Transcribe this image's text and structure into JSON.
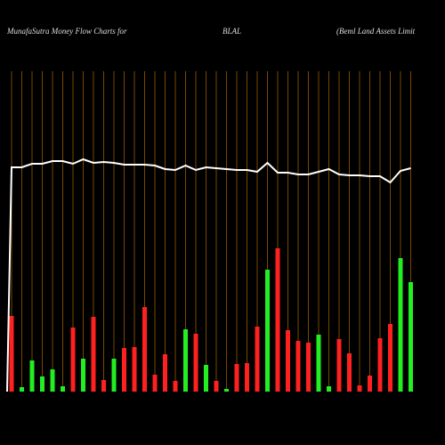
{
  "chart_data": {
    "type": "bar",
    "title": "MunafaSutra  Money Flow  Charts for",
    "symbol": "BLAL",
    "subtitle": "(Beml Land Assets Limit",
    "categories": [
      null,
      null,
      null,
      null,
      null,
      null,
      null,
      null,
      null,
      null,
      null,
      null,
      null,
      null,
      null,
      null,
      null,
      null,
      null,
      null,
      null,
      null,
      null,
      null,
      null,
      null,
      null,
      null,
      null,
      null,
      null,
      null,
      null,
      null,
      null,
      null,
      null,
      null,
      null,
      null
    ],
    "values": [
      85,
      5,
      35,
      17,
      25,
      6,
      72,
      37,
      84,
      13,
      37,
      49,
      50,
      95,
      19,
      42,
      12,
      70,
      65,
      30,
      12,
      3,
      31,
      32,
      73,
      137,
      161,
      69,
      57,
      55,
      64,
      6,
      59,
      43,
      7,
      18,
      60,
      76,
      150,
      123
    ],
    "colors": [
      "#ff2020",
      "#22ee22",
      "#22ee22",
      "#22ee22",
      "#22ee22",
      "#22ee22",
      "#ff2020",
      "#22ee22",
      "#ff2020",
      "#ff2020",
      "#22ee22",
      "#ff2020",
      "#ff2020",
      "#ff2020",
      "#ff2020",
      "#ff2020",
      "#ff2020",
      "#22ee22",
      "#ff2020",
      "#22ee22",
      "#ff2020",
      "#22ee22",
      "#ff2020",
      "#ff2020",
      "#ff2020",
      "#22ee22",
      "#ff2020",
      "#ff2020",
      "#ff2020",
      "#ff2020",
      "#22ee22",
      "#22ee22",
      "#ff2020",
      "#ff2020",
      "#ff2020",
      "#ff2020",
      "#ff2020",
      "#ff2020",
      "#22ee22",
      "#22ee22"
    ],
    "line_values": [
      252,
      252,
      256,
      256,
      259,
      259,
      256,
      261,
      257,
      258,
      257,
      255,
      255,
      255,
      254,
      250,
      249,
      254,
      249,
      252,
      251,
      250,
      249,
      249,
      247,
      257,
      246,
      246,
      244,
      244,
      247,
      250,
      244,
      243,
      243,
      242,
      242,
      235,
      248,
      251
    ],
    "line_color": "#ffffff",
    "grid_color": "#cc7a00"
  }
}
